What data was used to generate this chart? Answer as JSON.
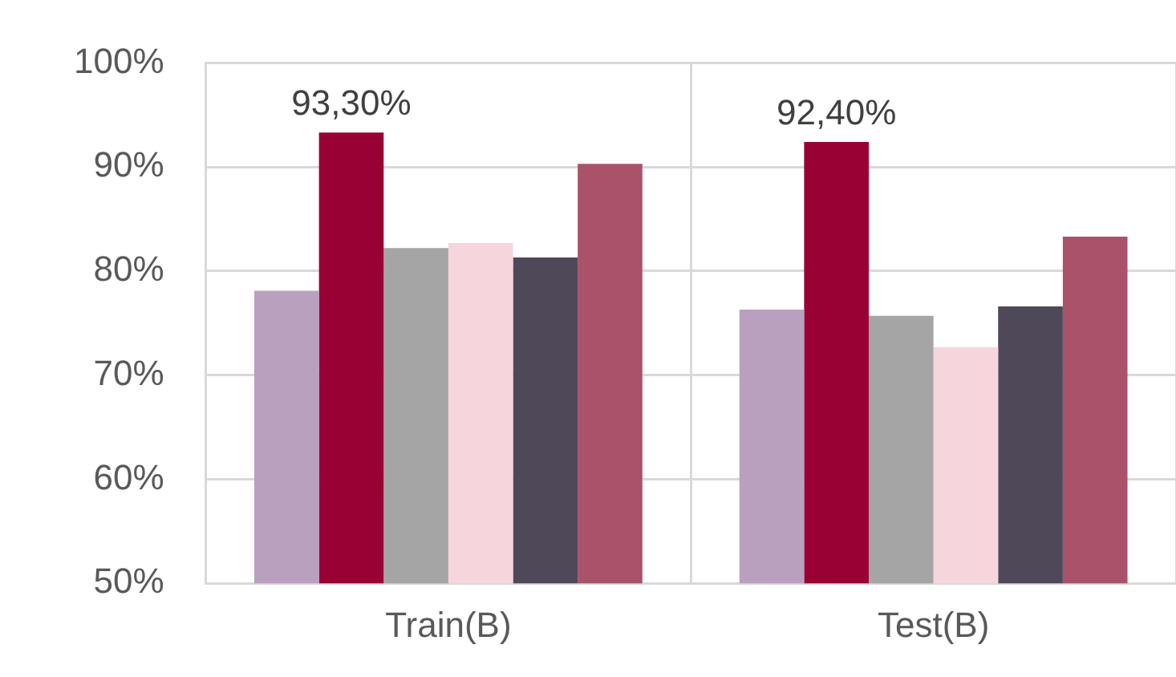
{
  "chart_data": {
    "type": "bar",
    "categories": [
      "Train(B)",
      "Test(B)"
    ],
    "series": [
      {
        "color": "#b9a0bf",
        "values": [
          78.1,
          76.3
        ]
      },
      {
        "color": "#990033",
        "values": [
          93.3,
          92.4
        ],
        "value_labels": [
          "93,30%",
          "92,40%"
        ]
      },
      {
        "color": "#a5a5a5",
        "values": [
          82.2,
          75.7
        ]
      },
      {
        "color": "#f6d5dd",
        "values": [
          82.7,
          72.7
        ]
      },
      {
        "color": "#4f4858",
        "values": [
          81.3,
          76.6
        ]
      },
      {
        "color": "#ab526b",
        "values": [
          90.3,
          83.3
        ]
      }
    ],
    "ylim": [
      50,
      100
    ],
    "yticks": [
      {
        "value": 50,
        "label": "50%"
      },
      {
        "value": 60,
        "label": "60%"
      },
      {
        "value": 70,
        "label": "70%"
      },
      {
        "value": 80,
        "label": "80%"
      },
      {
        "value": 90,
        "label": "90%"
      },
      {
        "value": 100,
        "label": "100%"
      }
    ],
    "grid": true,
    "legend": false
  }
}
